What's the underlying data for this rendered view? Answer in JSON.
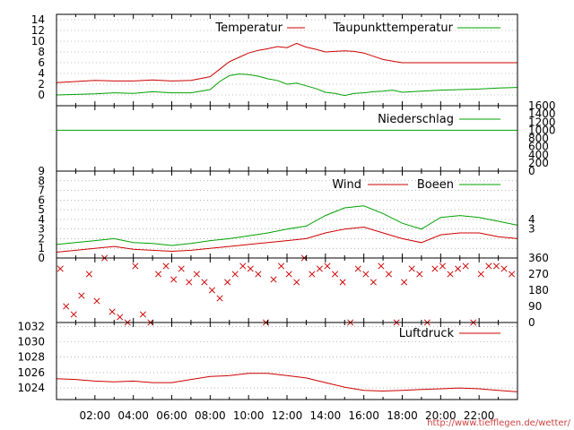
{
  "credit": "http://www.tiefflegen.de/wetter/",
  "time_axis": {
    "tick_labels": [
      "02:00",
      "04:00",
      "06:00",
      "08:00",
      "10:00",
      "12:00",
      "14:00",
      "16:00",
      "18:00",
      "20:00",
      "22:00"
    ],
    "range_hours": [
      0,
      24
    ]
  },
  "colors": {
    "red": "#cc0000",
    "green": "#00a000",
    "grid": "#888888"
  },
  "chart_data": [
    {
      "type": "line",
      "panel": "temperature",
      "ylim": [
        -2,
        15
      ],
      "yticks": [
        "14",
        "12",
        "10",
        "8",
        "6",
        "4",
        "2",
        "0"
      ],
      "legend": [
        "Temperatur",
        "Taupunkttemperatur"
      ],
      "x": [
        0,
        1,
        2,
        3,
        4,
        5,
        6,
        7,
        8,
        8.5,
        9,
        9.5,
        10,
        10.5,
        11,
        11.5,
        12,
        12.5,
        13,
        13.5,
        14,
        14.5,
        15,
        15.5,
        16,
        16.5,
        17,
        17.5,
        18,
        19,
        20,
        21,
        22,
        23,
        24
      ],
      "series": [
        {
          "name": "Temperatur",
          "values": [
            2.3,
            2.5,
            2.7,
            2.6,
            2.6,
            2.8,
            2.6,
            2.7,
            3.4,
            4.8,
            6.2,
            7.0,
            7.8,
            8.3,
            8.6,
            9.0,
            8.8,
            9.6,
            8.9,
            8.5,
            8.0,
            8.1,
            8.2,
            8.1,
            7.8,
            7.2,
            6.6,
            6.3,
            6.0,
            6.0,
            6.0,
            6.0,
            6.0,
            6.0,
            6.0
          ]
        },
        {
          "name": "Taupunkttemperatur",
          "values": [
            0.0,
            0.1,
            0.2,
            0.4,
            0.3,
            0.6,
            0.4,
            0.4,
            1.0,
            2.5,
            3.6,
            3.9,
            3.8,
            3.5,
            3.0,
            2.7,
            2.0,
            2.2,
            1.7,
            1.2,
            0.5,
            0.3,
            -0.1,
            0.3,
            0.4,
            0.6,
            0.7,
            0.9,
            0.5,
            0.7,
            0.9,
            1.0,
            1.1,
            1.3,
            1.4
          ]
        }
      ]
    },
    {
      "type": "line",
      "panel": "precipitation",
      "ylim": [
        0,
        1600
      ],
      "yticks": [
        "1600",
        "1400",
        "1200",
        "1000",
        "800",
        "600",
        "400",
        "200",
        "0"
      ],
      "legend": [
        "Niederschlag"
      ],
      "x": [
        0,
        24
      ],
      "series": [
        {
          "name": "Niederschlag",
          "values": [
            1000,
            1000
          ]
        }
      ]
    },
    {
      "type": "line",
      "panel": "wind",
      "ylim": [
        0,
        9
      ],
      "yticks": [
        "9",
        "8",
        "7",
        "6",
        "5",
        "4",
        "3",
        "2",
        "1",
        "0"
      ],
      "right_labels": [
        "4",
        "3"
      ],
      "legend": [
        "Wind",
        "Boeen"
      ],
      "x": [
        0,
        1,
        2,
        3,
        4,
        5,
        6,
        7,
        8,
        9,
        10,
        11,
        12,
        13,
        14,
        15,
        16,
        17,
        18,
        19,
        20,
        21,
        22,
        23,
        24
      ],
      "series": [
        {
          "name": "Wind",
          "values": [
            0.6,
            0.8,
            1.0,
            1.2,
            0.9,
            0.8,
            0.7,
            0.8,
            1.0,
            1.2,
            1.4,
            1.6,
            1.8,
            2.0,
            2.6,
            3.0,
            3.2,
            2.6,
            2.0,
            1.6,
            2.4,
            2.6,
            2.6,
            2.2,
            2.0
          ]
        },
        {
          "name": "Boeen",
          "values": [
            1.4,
            1.6,
            1.8,
            2.0,
            1.6,
            1.5,
            1.3,
            1.5,
            1.8,
            2.0,
            2.3,
            2.6,
            3.0,
            3.3,
            4.4,
            5.2,
            5.4,
            4.6,
            3.6,
            3.0,
            4.2,
            4.4,
            4.2,
            3.8,
            3.4
          ]
        }
      ]
    },
    {
      "type": "scatter",
      "panel": "wind-direction",
      "ylim": [
        0,
        360
      ],
      "yticks": [
        "360",
        "270",
        "180",
        "90",
        "0"
      ],
      "x": [
        0.2,
        0.5,
        0.9,
        1.3,
        1.7,
        2.1,
        2.5,
        2.9,
        3.3,
        3.7,
        4.1,
        4.5,
        4.9,
        5.3,
        5.7,
        6.1,
        6.5,
        6.9,
        7.3,
        7.7,
        8.1,
        8.5,
        8.9,
        9.3,
        9.7,
        10.1,
        10.5,
        10.9,
        11.3,
        11.7,
        12.1,
        12.5,
        12.9,
        13.3,
        13.7,
        14.1,
        14.5,
        14.9,
        15.3,
        15.7,
        16.1,
        16.5,
        16.9,
        17.3,
        17.7,
        18.1,
        18.5,
        18.9,
        19.3,
        19.7,
        20.1,
        20.5,
        20.9,
        21.3,
        21.7,
        22.1,
        22.5,
        22.9,
        23.3,
        23.7
      ],
      "values": [
        300,
        90,
        45,
        150,
        270,
        120,
        360,
        60,
        30,
        0,
        315,
        45,
        0,
        270,
        315,
        240,
        300,
        225,
        270,
        225,
        180,
        135,
        225,
        270,
        315,
        300,
        270,
        0,
        240,
        315,
        270,
        225,
        360,
        270,
        300,
        315,
        270,
        225,
        0,
        300,
        270,
        225,
        315,
        270,
        0,
        225,
        300,
        270,
        0,
        300,
        315,
        270,
        300,
        315,
        0,
        270,
        315,
        315,
        300,
        270
      ]
    },
    {
      "type": "line",
      "panel": "pressure",
      "ylim": [
        1022.5,
        1032.5
      ],
      "yticks": [
        "1032",
        "1030",
        "1028",
        "1026",
        "1024"
      ],
      "legend": [
        "Luftdruck"
      ],
      "x": [
        0,
        1,
        2,
        3,
        4,
        5,
        6,
        7,
        8,
        9,
        10,
        11,
        12,
        13,
        14,
        15,
        16,
        17,
        18,
        19,
        20,
        21,
        22,
        23,
        24
      ],
      "series": [
        {
          "name": "Luftdruck",
          "values": [
            1025.2,
            1025.1,
            1024.9,
            1024.8,
            1024.9,
            1024.7,
            1024.7,
            1025.1,
            1025.5,
            1025.6,
            1025.9,
            1025.9,
            1025.6,
            1025.3,
            1024.7,
            1024.1,
            1023.7,
            1023.6,
            1023.7,
            1023.8,
            1023.9,
            1024.0,
            1023.9,
            1023.7,
            1023.5
          ]
        }
      ]
    }
  ]
}
